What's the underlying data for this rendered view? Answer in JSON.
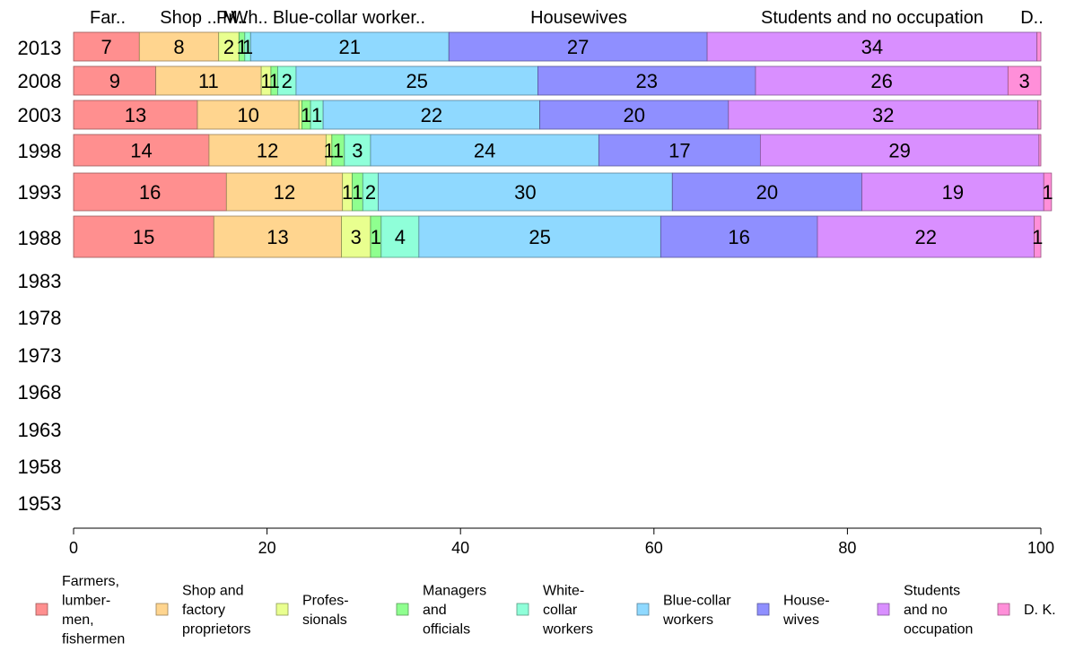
{
  "chart_data": {
    "type": "bar",
    "orientation": "horizontal",
    "stacked": true,
    "title": "",
    "xlabel": "",
    "ylabel": "",
    "xlim": [
      0,
      100
    ],
    "x_ticks": [
      0,
      20,
      40,
      60,
      80,
      100
    ],
    "grid": false,
    "legend_position": "bottom",
    "categories": [
      "2013",
      "2008",
      "2003",
      "1998",
      "1993",
      "1988",
      "1983",
      "1978",
      "1973",
      "1968",
      "1963",
      "1958",
      "1953"
    ],
    "top_labels": [
      "Far..",
      "Shop ..",
      "Pr..",
      "M..",
      "Wh..",
      "Blue-collar worker..",
      "Housewives",
      "Students and no occupation",
      "D.."
    ],
    "series": [
      {
        "name": "Farmers, lumbermen, fishermen",
        "legend_lines": [
          "Farmers,",
          "lumber-",
          "men,",
          "fishermen"
        ],
        "color": "#ff8f8f",
        "values": [
          6.8,
          8.5,
          12.8,
          14.0,
          15.8,
          14.5,
          null,
          null,
          null,
          null,
          null,
          null,
          null
        ],
        "labels": [
          "7",
          "9",
          "13",
          "14",
          "16",
          "15",
          "",
          "",
          "",
          "",
          "",
          "",
          ""
        ]
      },
      {
        "name": "Shop and factory proprietors",
        "legend_lines": [
          "Shop and",
          "factory",
          "proprietors"
        ],
        "color": "#ffd58f",
        "values": [
          8.2,
          10.9,
          10.5,
          12.1,
          12.0,
          13.2,
          null,
          null,
          null,
          null,
          null,
          null,
          null
        ],
        "labels": [
          "8",
          "11",
          "10",
          "12",
          "12",
          "13",
          "",
          "",
          "",
          "",
          "",
          "",
          ""
        ]
      },
      {
        "name": "Professionals",
        "legend_lines": [
          "Profes-",
          "sionals"
        ],
        "color": "#e9ff8f",
        "values": [
          2.1,
          1.0,
          0.3,
          0.6,
          1.0,
          3.0,
          null,
          null,
          null,
          null,
          null,
          null,
          null
        ],
        "labels": [
          "2",
          "1",
          "",
          "1",
          "1",
          "3",
          "",
          "",
          "",
          "",
          "",
          "",
          ""
        ]
      },
      {
        "name": "Managers and officials",
        "legend_lines": [
          "Managers",
          "and",
          "officials"
        ],
        "color": "#8fff8f",
        "values": [
          0.6,
          0.7,
          0.9,
          1.3,
          1.1,
          1.1,
          null,
          null,
          null,
          null,
          null,
          null,
          null
        ],
        "labels": [
          "1",
          "1",
          "1",
          "1",
          "1",
          "1",
          "",
          "",
          "",
          "",
          "",
          "",
          ""
        ]
      },
      {
        "name": "White-collar workers",
        "legend_lines": [
          "White-",
          "collar",
          "workers"
        ],
        "color": "#8fffd9",
        "values": [
          0.6,
          1.9,
          1.3,
          2.7,
          1.6,
          3.9,
          null,
          null,
          null,
          null,
          null,
          null,
          null
        ],
        "labels": [
          "1",
          "2",
          "1",
          "3",
          "2",
          "4",
          "",
          "",
          "",
          "",
          "",
          "",
          ""
        ]
      },
      {
        "name": "Blue-collar workers",
        "legend_lines": [
          "Blue-collar",
          "workers"
        ],
        "color": "#8fd9ff",
        "values": [
          20.5,
          25.0,
          22.4,
          23.6,
          30.4,
          25.0,
          null,
          null,
          null,
          null,
          null,
          null,
          null
        ],
        "labels": [
          "21",
          "25",
          "22",
          "24",
          "30",
          "25",
          "",
          "",
          "",
          "",
          "",
          "",
          ""
        ]
      },
      {
        "name": "Housewives",
        "legend_lines": [
          "House-",
          "wives"
        ],
        "color": "#8f8fff",
        "values": [
          26.7,
          22.5,
          19.5,
          16.7,
          19.6,
          16.2,
          null,
          null,
          null,
          null,
          null,
          null,
          null
        ],
        "labels": [
          "27",
          "23",
          "20",
          "17",
          "20",
          "16",
          "",
          "",
          "",
          "",
          "",
          "",
          ""
        ]
      },
      {
        "name": "Students and no occupation",
        "legend_lines": [
          "Students",
          "and no",
          "occupation"
        ],
        "color": "#d98fff",
        "values": [
          34.1,
          26.1,
          32.0,
          28.8,
          18.8,
          22.4,
          null,
          null,
          null,
          null,
          null,
          null,
          null
        ],
        "labels": [
          "34",
          "26",
          "32",
          "29",
          "19",
          "22",
          "",
          "",
          "",
          "",
          "",
          "",
          ""
        ]
      },
      {
        "name": "D. K.",
        "legend_lines": [
          "D. K."
        ],
        "color": "#ff8fd9",
        "values": [
          0.4,
          3.4,
          0.3,
          0.2,
          0.8,
          0.7,
          null,
          null,
          null,
          null,
          null,
          null,
          null
        ],
        "labels": [
          "",
          "3",
          "",
          "",
          "1",
          "1",
          "",
          "",
          "",
          "",
          "",
          "",
          ""
        ]
      }
    ]
  }
}
